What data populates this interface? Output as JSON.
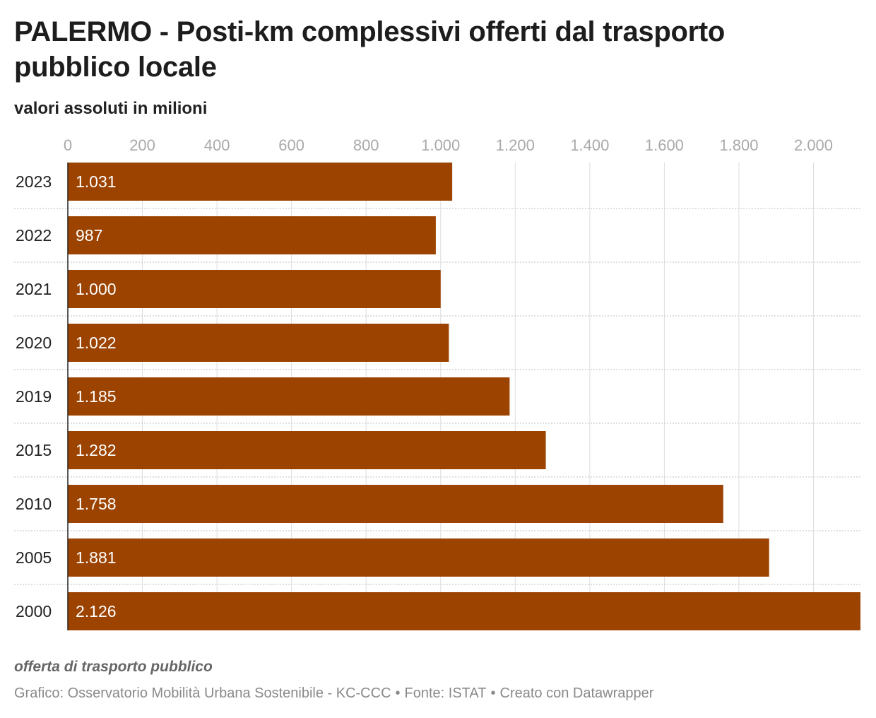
{
  "title": "PALERMO - Posti-km complessivi offerti dal trasporto pubblico locale",
  "subtitle": "valori assoluti in milioni",
  "footer": {
    "note": "offerta di trasporto pubblico",
    "credits": {
      "source_chart": "Grafico: Osservatorio Mobilità Urbana Sostenibile - KC-CCC",
      "source_data": "Fonte: ISTAT",
      "tool": "Creato con Datawrapper",
      "separator": "•"
    }
  },
  "colors": {
    "bar": "#9c4300",
    "bar_label": "#ffffff",
    "grid": "#dddddd",
    "row_separator": "#cccccc",
    "tick_label": "#aaaaaa",
    "category_label": "#222222",
    "axis_line": "#222222"
  },
  "chart_data": {
    "type": "bar",
    "orientation": "horizontal",
    "categories": [
      "2023",
      "2022",
      "2021",
      "2020",
      "2019",
      "2015",
      "2010",
      "2005",
      "2000"
    ],
    "values": [
      1031,
      987,
      1000,
      1022,
      1185,
      1282,
      1758,
      1881,
      2126
    ],
    "value_labels": [
      "1.031",
      "987",
      "1.000",
      "1.022",
      "1.185",
      "1.282",
      "1.758",
      "1.881",
      "2.126"
    ],
    "xlim": [
      0,
      2126
    ],
    "x_ticks": [
      0,
      200,
      400,
      600,
      800,
      1000,
      1200,
      1400,
      1600,
      1800,
      2000
    ],
    "x_tick_labels": [
      "0",
      "200",
      "400",
      "600",
      "800",
      "1.000",
      "1.200",
      "1.400",
      "1.600",
      "1.800",
      "2.000"
    ],
    "x_axis_position": "top",
    "grid": true,
    "legend": "none"
  }
}
